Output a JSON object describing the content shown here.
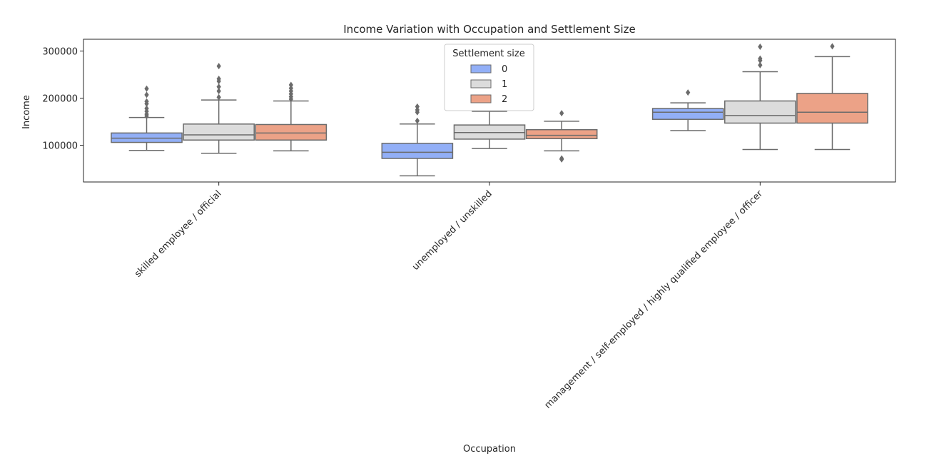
{
  "chart_data": {
    "type": "boxplot",
    "title": "Income Variation with Occupation and Settlement Size",
    "xlabel": "Occupation",
    "ylabel": "Income",
    "ylim": [
      22000,
      325000
    ],
    "yticks": [
      100000,
      200000,
      300000
    ],
    "categories": [
      "skilled employee / official",
      "unemployed / unskilled",
      "management / self-employed / highly qualified employee / officer"
    ],
    "legend": {
      "title": "Settlement size",
      "placement": "top-center"
    },
    "series": [
      {
        "name": "0",
        "color": "#92aff7",
        "boxes": [
          {
            "whisker_low": 89000,
            "q1": 106000,
            "median": 115000,
            "q3": 126000,
            "whisker_high": 159000,
            "outliers": [
              162000,
              166000,
              172000,
              178000,
              188000,
              193000,
              207000,
              220000
            ]
          },
          {
            "whisker_low": 35000,
            "q1": 72000,
            "median": 85000,
            "q3": 104000,
            "whisker_high": 145000,
            "outliers": [
              152000,
              170000,
              175000,
              182000
            ]
          },
          {
            "whisker_low": 131000,
            "q1": 155000,
            "median": 170000,
            "q3": 178000,
            "whisker_high": 190000,
            "outliers": [
              212000
            ]
          }
        ]
      },
      {
        "name": "1",
        "color": "#dcdcdc",
        "boxes": [
          {
            "whisker_low": 83000,
            "q1": 111000,
            "median": 122000,
            "q3": 145000,
            "whisker_high": 196000,
            "outliers": [
              202000,
              215000,
              224000,
              236000,
              241000,
              268000
            ]
          },
          {
            "whisker_low": 93000,
            "q1": 113000,
            "median": 127000,
            "q3": 143000,
            "whisker_high": 172000,
            "outliers": []
          },
          {
            "whisker_low": 91000,
            "q1": 147000,
            "median": 163000,
            "q3": 194000,
            "whisker_high": 256000,
            "outliers": [
              270000,
              280000,
              284000,
              309000
            ]
          }
        ]
      },
      {
        "name": "2",
        "color": "#eca287",
        "boxes": [
          {
            "whisker_low": 88000,
            "q1": 111000,
            "median": 126000,
            "q3": 144000,
            "whisker_high": 194000,
            "outliers": [
              198000,
              203000,
              209000,
              215000,
              221000,
              228000
            ]
          },
          {
            "whisker_low": 88000,
            "q1": 114000,
            "median": 121000,
            "q3": 133000,
            "whisker_high": 151000,
            "outliers": [
              70000,
              72000,
              168000
            ]
          },
          {
            "whisker_low": 91000,
            "q1": 147000,
            "median": 170000,
            "q3": 210000,
            "whisker_high": 288000,
            "outliers": [
              310000
            ]
          }
        ]
      }
    ]
  }
}
